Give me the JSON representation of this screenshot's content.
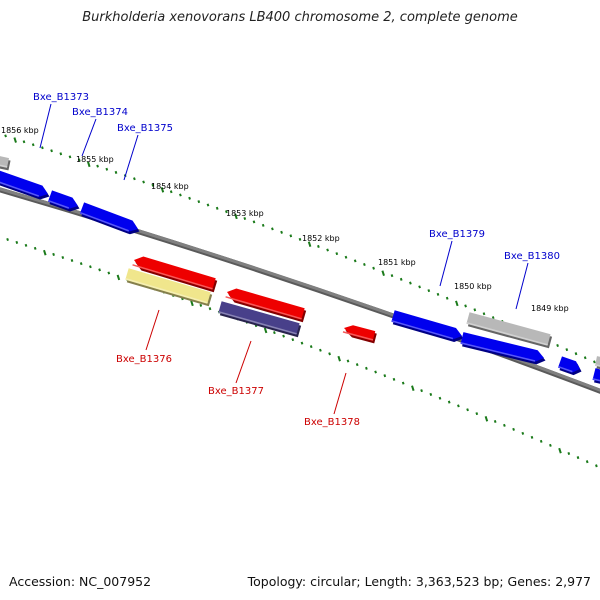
{
  "title": "Burkholderia xenovorans LB400 chromosome 2, complete genome",
  "footer": {
    "accession": "Accession: NC_007952",
    "topology": "Topology: circular; Length: 3,363,523 bp; Genes: 2,977"
  },
  "colors": {
    "backbone": "#808080",
    "tick": "#1a7a1a",
    "plus_label": "#0000cc",
    "minus_label": "#cc0000",
    "blue_gene": "#0000ee",
    "red_gene": "#ee0000",
    "gray_gene": "#b8b8b8",
    "yellow_gene": "#f0e68c",
    "purple_gene": "#48408a"
  },
  "kbp_labels": [
    "1856 kbp",
    "1855 kbp",
    "1854 kbp",
    "1853 kbp",
    "1852 kbp",
    "1851 kbp",
    "1850 kbp",
    "1849 kbp"
  ],
  "gene_labels": {
    "plus": [
      "Bxe_B1373",
      "Bxe_B1374",
      "Bxe_B1375",
      "Bxe_B1379",
      "Bxe_B1380"
    ],
    "minus": [
      "Bxe_B1376",
      "Bxe_B1377",
      "Bxe_B1378"
    ]
  }
}
